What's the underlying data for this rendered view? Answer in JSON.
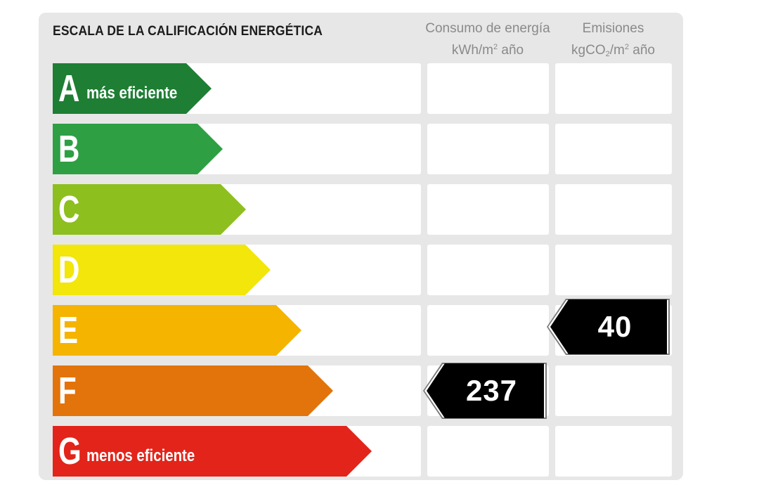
{
  "title": "ESCALA DE LA CALIFICACIÓN ENERGÉTICA",
  "columns": {
    "consumo": {
      "line1": "Consumo de energía",
      "unit_a": "kWh/m",
      "unit_sup": "2",
      "unit_b": " año"
    },
    "emisiones": {
      "line1": "Emisiones",
      "unit_a": "kgCO",
      "unit_sub": "2",
      "unit_mid": "/m",
      "unit_sup": "2",
      "unit_b": " año"
    }
  },
  "ratings": [
    {
      "letter": "A",
      "desc": "más eficiente",
      "color": "#1e7e34"
    },
    {
      "letter": "B",
      "desc": "",
      "color": "#2ea043"
    },
    {
      "letter": "C",
      "desc": "",
      "color": "#8dbf1e"
    },
    {
      "letter": "D",
      "desc": "",
      "color": "#f2e60a"
    },
    {
      "letter": "E",
      "desc": "",
      "color": "#f4b400"
    },
    {
      "letter": "F",
      "desc": "",
      "color": "#e2740b"
    },
    {
      "letter": "G",
      "desc": "menos eficiente",
      "color": "#e3241a"
    }
  ],
  "values": {
    "consumo": {
      "rating": "F",
      "value": "237"
    },
    "emisiones": {
      "rating": "E",
      "value": "40"
    }
  }
}
